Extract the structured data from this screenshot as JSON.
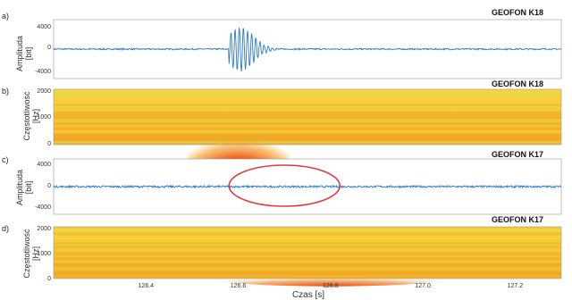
{
  "chart_data": [
    {
      "type": "line",
      "panel_label": "a)",
      "title": "GEOFON K18",
      "ylabel_main": "Amplituda",
      "ylabel_unit": "[bit]",
      "yticks": [
        "4000",
        "0",
        "-4000"
      ],
      "ylim": [
        -5000,
        5000
      ],
      "xlim": [
        126.2,
        127.3
      ],
      "burst": {
        "center": 126.6,
        "peak_amplitude": 3800,
        "duration": 0.12
      },
      "noise_amplitude": 120,
      "color": "#2b7bcc"
    },
    {
      "type": "heatmap",
      "panel_label": "b)",
      "title": "GEOFON K18",
      "ylabel_main": "Częstotliwość",
      "ylabel_unit": "[Hz]",
      "yticks": [
        "2000",
        "1000",
        "0"
      ],
      "ylim": [
        0,
        2000
      ],
      "xlim": [
        126.2,
        127.3
      ],
      "hot_region": {
        "center": 126.6,
        "width": 0.12,
        "max_freq": 1200
      }
    },
    {
      "type": "line",
      "panel_label": "c)",
      "title": "GEOFON K17",
      "ylabel_main": "Amplituda",
      "ylabel_unit": "[bit]",
      "yticks": [
        "4000",
        "0",
        "-4000"
      ],
      "ylim": [
        -5000,
        5000
      ],
      "xlim": [
        126.2,
        127.3
      ],
      "noise_amplitude": 180,
      "highlight_ellipse": {
        "x_center": 126.7,
        "x_width": 0.24,
        "color": "#e23a3a"
      },
      "color": "#2b7bcc"
    },
    {
      "type": "heatmap",
      "panel_label": "d)",
      "title": "GEOFON K17",
      "ylabel_main": "Częstotliwość",
      "ylabel_unit": "[Hz]",
      "yticks": [
        "2000",
        "1000",
        "0"
      ],
      "ylim": [
        0,
        2000
      ],
      "xlim": [
        126.2,
        127.3
      ],
      "hot_region": {
        "center": 126.8,
        "width": 0.25,
        "max_freq": 300
      }
    }
  ],
  "x_axis": {
    "ticks": [
      126.4,
      126.6,
      126.8,
      127.0,
      127.2
    ],
    "tick_labels": [
      "126.4",
      "126.6",
      "126.8",
      "127.0",
      "127.2"
    ],
    "label": "Czas [s]"
  }
}
